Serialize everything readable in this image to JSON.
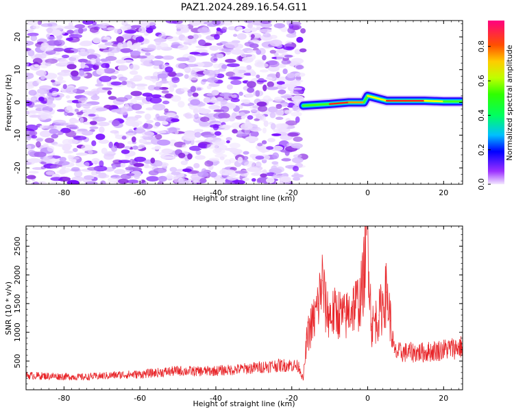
{
  "title": "PAZ1.2024.289.16.54.G11",
  "colors": {
    "snr_line": "#e8262a",
    "axis": "#000000",
    "spec_low": "#e6d4ff",
    "spec_mid": "#a060f0",
    "spec_high": "#8000ff"
  },
  "chart_data": [
    {
      "type": "heatmap",
      "title": "PAZ1.2024.289.16.54.G11",
      "xlabel": "Height of straight line (km)",
      "ylabel": "Frequency (Hz)",
      "xlim": [
        -90,
        25
      ],
      "ylim": [
        -25,
        25
      ],
      "xticks": [
        -80,
        -60,
        -40,
        -20,
        0,
        20
      ],
      "yticks": [
        20,
        10,
        0,
        -10,
        -20
      ],
      "noise_region_x": [
        -90,
        -17
      ],
      "signal_track": {
        "x": [
          -17,
          -10,
          -5,
          -1,
          0,
          5,
          10,
          15,
          20,
          25
        ],
        "frequency": [
          -1,
          -0.5,
          0,
          0,
          2,
          0.5,
          0.5,
          0.5,
          0.3,
          0.3
        ],
        "amplitude": [
          0.3,
          0.8,
          0.95,
          0.6,
          0.5,
          0.8,
          0.9,
          0.85,
          0.6,
          0.5
        ]
      },
      "colorbar": {
        "label": "Normalized spectral amplitude",
        "ticks": [
          "0.0",
          "0.2",
          "0.4",
          "0.6",
          "0.8"
        ],
        "range": [
          0,
          0.95
        ]
      }
    },
    {
      "type": "line",
      "xlabel": "Height of straight line (km)",
      "ylabel": "SNR (10 * v/v)",
      "xlim": [
        -90,
        25
      ],
      "ylim": [
        0,
        2850
      ],
      "xticks": [
        -80,
        -60,
        -40,
        -20,
        0,
        20
      ],
      "yticks": [
        500,
        1000,
        1500,
        2000,
        2500
      ],
      "x": [
        -90,
        -85,
        -80,
        -75,
        -70,
        -65,
        -60,
        -55,
        -50,
        -45,
        -40,
        -35,
        -30,
        -25,
        -20,
        -18,
        -17,
        -16,
        -15,
        -14,
        -13,
        -12,
        -11,
        -10,
        -8,
        -6,
        -4,
        -2,
        -1,
        0,
        1,
        3,
        5,
        6,
        7,
        8,
        10,
        15,
        20,
        25
      ],
      "values": [
        250,
        240,
        230,
        220,
        240,
        260,
        270,
        300,
        330,
        320,
        330,
        350,
        380,
        420,
        430,
        400,
        170,
        900,
        1100,
        1250,
        1500,
        1900,
        1400,
        1300,
        1350,
        1250,
        1450,
        1550,
        2000,
        2850,
        1100,
        1300,
        1700,
        1200,
        650,
        650,
        650,
        650,
        700,
        750
      ]
    }
  ]
}
